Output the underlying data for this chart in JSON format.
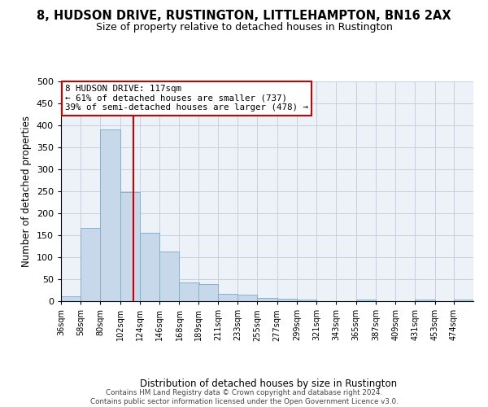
{
  "title": "8, HUDSON DRIVE, RUSTINGTON, LITTLEHAMPTON, BN16 2AX",
  "subtitle": "Size of property relative to detached houses in Rustington",
  "xlabel": "Distribution of detached houses by size in Rustington",
  "ylabel": "Number of detached properties",
  "bar_color": "#c8d8eb",
  "bar_edge_color": "#7aaac8",
  "grid_color": "#c5cfdf",
  "background_color": "#edf1f8",
  "vline_x": 117,
  "vline_color": "#cc0000",
  "categories": [
    "36sqm",
    "58sqm",
    "80sqm",
    "102sqm",
    "124sqm",
    "146sqm",
    "168sqm",
    "189sqm",
    "211sqm",
    "233sqm",
    "255sqm",
    "277sqm",
    "299sqm",
    "321sqm",
    "343sqm",
    "365sqm",
    "387sqm",
    "409sqm",
    "431sqm",
    "453sqm",
    "474sqm"
  ],
  "bin_edges": [
    36,
    58,
    80,
    102,
    124,
    146,
    168,
    189,
    211,
    233,
    255,
    277,
    299,
    321,
    343,
    365,
    387,
    409,
    431,
    453,
    474,
    496
  ],
  "values": [
    11,
    167,
    390,
    249,
    155,
    113,
    42,
    39,
    17,
    14,
    8,
    6,
    4,
    0,
    0,
    3,
    0,
    0,
    4,
    0,
    4
  ],
  "annotation_line1": "8 HUDSON DRIVE: 117sqm",
  "annotation_line2": "← 61% of detached houses are smaller (737)",
  "annotation_line3": "39% of semi-detached houses are larger (478) →",
  "annotation_box_color": "#ffffff",
  "annotation_box_edge": "#cc0000",
  "footer": "Contains HM Land Registry data © Crown copyright and database right 2024.\nContains public sector information licensed under the Open Government Licence v3.0.",
  "ylim": [
    0,
    500
  ],
  "yticks": [
    0,
    50,
    100,
    150,
    200,
    250,
    300,
    350,
    400,
    450,
    500
  ]
}
